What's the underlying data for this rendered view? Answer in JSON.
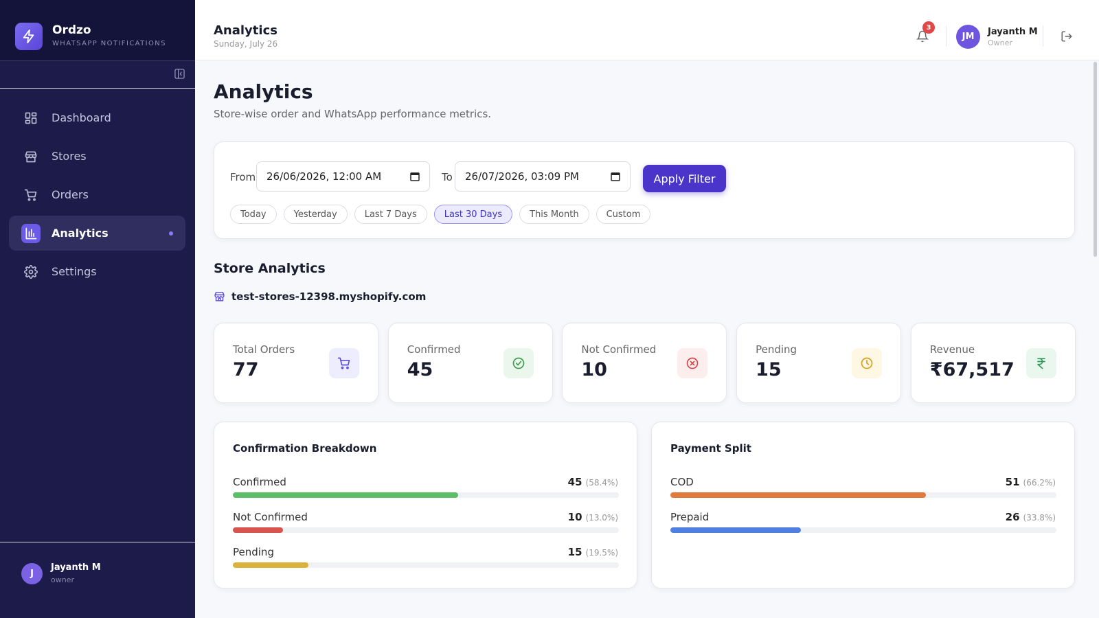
{
  "sidebar": {
    "brand": "Ordzo",
    "tagline": "WHATSAPP NOTIFICATIONS",
    "nav": [
      "Dashboard",
      "Stores",
      "Orders",
      "Analytics",
      "Settings"
    ],
    "user": {
      "initial": "J",
      "name": "Jayanth M",
      "role": "owner"
    }
  },
  "topbar": {
    "title": "Analytics",
    "date": "Sunday, July 26",
    "notifications": 3,
    "avatar": "JM",
    "name": "Jayanth M",
    "role": "Owner"
  },
  "header": {
    "title": "Analytics",
    "subtitle": "Store-wise order and WhatsApp performance metrics."
  },
  "filter": {
    "from_label": "From",
    "from": "26/06/2026, 12:00 AM",
    "to_label": "To",
    "to": "26/07/2026, 03:09 PM",
    "button": "Apply Filter",
    "presets": [
      "Today",
      "Yesterday",
      "Last 7 Days",
      "Last 30 Days",
      "This Month",
      "Custom"
    ]
  },
  "store": {
    "heading": "Store Analytics",
    "domain": "test-stores-12398.myshopify.com"
  },
  "stats": [
    {
      "label": "Total Orders",
      "value": 77
    },
    {
      "label": "Confirmed",
      "value": 45
    },
    {
      "label": "Not Confirmed",
      "value": 10
    },
    {
      "label": "Pending",
      "value": 15
    },
    {
      "label": "Revenue",
      "value": "₹67,517"
    }
  ],
  "panels": [
    {
      "title": "Confirmation Breakdown",
      "rows": [
        {
          "label": "Confirmed",
          "count": 45,
          "percent": 58.4,
          "percent_label": "(58.4%)",
          "color": "#5cbf68"
        },
        {
          "label": "Not Confirmed",
          "count": 10,
          "percent": 13.0,
          "percent_label": "(13.0%)",
          "color": "#d9534f"
        },
        {
          "label": "Pending",
          "count": 15,
          "percent": 19.5,
          "percent_label": "(19.5%)",
          "color": "#dcb33a"
        }
      ]
    },
    {
      "title": "Payment Split",
      "rows": [
        {
          "label": "COD",
          "count": 51,
          "percent": 66.2,
          "percent_label": "(66.2%)",
          "color": "#e0793a"
        },
        {
          "label": "Prepaid",
          "count": 26,
          "percent": 33.8,
          "percent_label": "(33.8%)",
          "color": "#4f7fe0"
        }
      ]
    }
  ]
}
